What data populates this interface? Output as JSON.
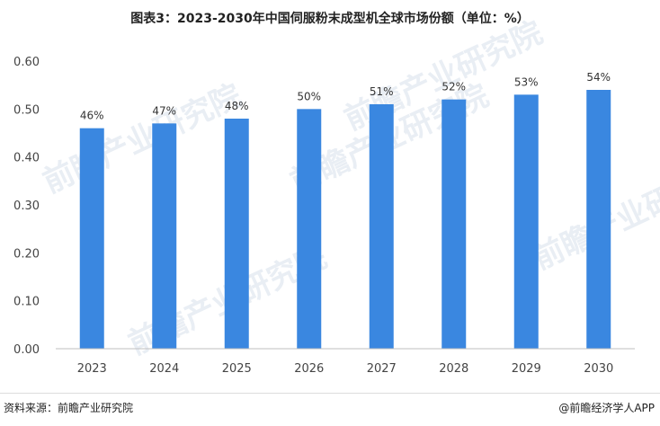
{
  "title": "图表3：2023-2030年中国伺服粉末成型机全球市场份额（单位：%）",
  "source": "资料来源：前瞻产业研究院",
  "brand": "@前瞻经济学人APP",
  "watermark": "前瞻产业研究院",
  "colors": {
    "bar": "#3a87e0",
    "axis": "#bfbfbf"
  },
  "chart_data": {
    "type": "bar",
    "title": "图表3：2023-2030年中国伺服粉末成型机全球市场份额（单位：%）",
    "categories": [
      "2023",
      "2024",
      "2025",
      "2026",
      "2027",
      "2028",
      "2029",
      "2030"
    ],
    "values": [
      0.46,
      0.47,
      0.48,
      0.5,
      0.51,
      0.52,
      0.53,
      0.54
    ],
    "data_labels": [
      "46%",
      "47%",
      "48%",
      "50%",
      "51%",
      "52%",
      "53%",
      "54%"
    ],
    "yticks": [
      "0.00",
      "0.10",
      "0.20",
      "0.30",
      "0.40",
      "0.50",
      "0.60"
    ],
    "ylim": [
      0,
      0.6
    ],
    "xlabel": "",
    "ylabel": "",
    "grid": false,
    "legend": "none"
  }
}
